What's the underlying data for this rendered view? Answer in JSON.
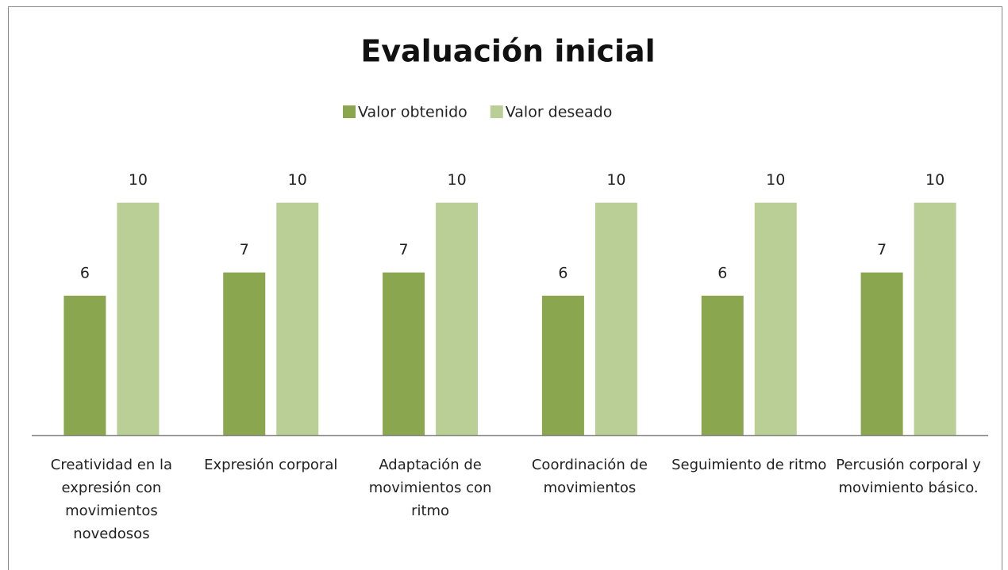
{
  "chart_data": {
    "type": "bar",
    "title": "Evaluación inicial",
    "categories": [
      "Creatividad en la expresión con movimientos novedosos",
      "Expresión corporal",
      "Adaptación de movimientos con ritmo",
      "Coordinación de movimientos",
      "Seguimiento de ritmo",
      "Percusión corporal y movimiento básico."
    ],
    "series": [
      {
        "name": "Valor obtenido",
        "color": "#8aa64e",
        "values": [
          6,
          7,
          7,
          6,
          6,
          7
        ]
      },
      {
        "name": "Valor deseado",
        "color": "#b9cf95",
        "values": [
          10,
          10,
          10,
          10,
          10,
          10
        ]
      }
    ],
    "ylim": [
      0,
      12
    ],
    "legend": "top"
  }
}
